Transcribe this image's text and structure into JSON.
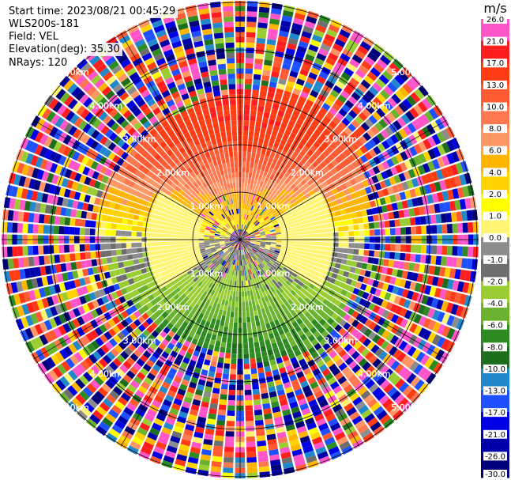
{
  "header": {
    "start_time": "Start time: 2023/08/21 00:45:29",
    "instrument": "WLS200s-181",
    "field": "Field: VEL",
    "elevation": "Elevation(deg): 35.30",
    "nrays": "NRays: 120"
  },
  "colorbar": {
    "unit": "m/s",
    "ticks": [
      "26.0",
      "21.0",
      "17.0",
      "13.0",
      "10.0",
      "8.0",
      "6.0",
      "4.0",
      "2.0",
      "1.0",
      "0.0",
      "-1.0",
      "-2.0",
      "-4.0",
      "-6.0",
      "-8.0",
      "-10.0",
      "-13.0",
      "-17.0",
      "-21.0",
      "-26.0",
      "-30.0"
    ],
    "colors": [
      "#ff55c8",
      "#ff1e1e",
      "#ff3c14",
      "#ff5a32",
      "#ff7850",
      "#ff9664",
      "#ffb400",
      "#ffd200",
      "#ffff00",
      "#fff573",
      "#8c8c8c",
      "#6e6e6e",
      "#9acd32",
      "#6bb32e",
      "#2e8b22",
      "#1e6e1e",
      "#2288cc",
      "#1e50ff",
      "#0000e6",
      "#0000aa",
      "#00007a",
      "#202060"
    ]
  },
  "chart_data": {
    "type": "ppi-radial-velocity",
    "nrays": 120,
    "range_ring_labels": [
      "1.00km",
      "2.00km",
      "3.00km",
      "4.00km",
      "5.00km"
    ],
    "value_range": [
      -30,
      26
    ],
    "unit": "m/s",
    "pattern": {
      "toward_north_m_s": 17,
      "toward_south_m_s": -8,
      "near_range_m_s": 0
    }
  }
}
